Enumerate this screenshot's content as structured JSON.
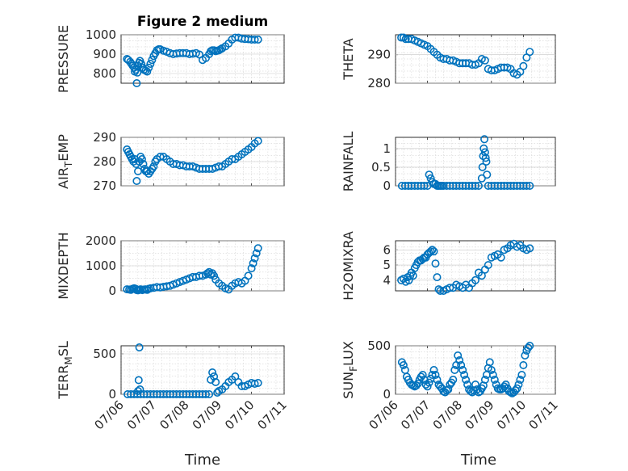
{
  "figure": {
    "title": "Figure 2 medium",
    "xlabel": "Time",
    "x_tick_labels": [
      "07/06",
      "07/07",
      "07/08",
      "07/09",
      "07/10",
      "07/11"
    ],
    "marker_color": "#0072BD"
  },
  "chart_data": [
    {
      "type": "scatter",
      "name": "pressure",
      "ylabel": "PRESSURE",
      "xlim": [
        0,
        5
      ],
      "ylim": [
        750,
        1000
      ],
      "yticks": [
        800,
        900,
        1000
      ],
      "grid": true,
      "x": [
        0.18,
        0.22,
        0.28,
        0.32,
        0.36,
        0.4,
        0.42,
        0.45,
        0.48,
        0.5,
        0.52,
        0.55,
        0.58,
        0.62,
        0.66,
        0.7,
        0.75,
        0.8,
        0.85,
        0.9,
        0.95,
        1.0,
        1.05,
        1.1,
        1.15,
        1.2,
        1.3,
        1.4,
        1.5,
        1.6,
        1.7,
        1.8,
        1.9,
        2.0,
        2.1,
        2.2,
        2.3,
        2.4,
        2.5,
        2.6,
        2.7,
        2.75,
        2.8,
        2.85,
        2.9,
        2.95,
        3.0,
        3.05,
        3.1,
        3.2,
        3.3,
        3.4,
        3.5,
        3.6,
        3.7,
        3.8,
        3.9,
        4.0,
        4.1,
        4.2
      ],
      "y": [
        875,
        870,
        860,
        850,
        840,
        830,
        810,
        820,
        750,
        805,
        840,
        855,
        865,
        850,
        830,
        820,
        815,
        810,
        830,
        850,
        870,
        890,
        905,
        920,
        925,
        925,
        918,
        912,
        905,
        900,
        903,
        905,
        905,
        905,
        900,
        902,
        905,
        898,
        870,
        880,
        900,
        915,
        920,
        920,
        915,
        918,
        920,
        925,
        930,
        940,
        955,
        975,
        985,
        985,
        980,
        978,
        977,
        975,
        975,
        975
      ]
    },
    {
      "type": "scatter",
      "name": "theta",
      "ylabel": "THETA",
      "xlim": [
        0,
        5
      ],
      "ylim": [
        280,
        297
      ],
      "yticks": [
        280,
        290
      ],
      "grid": true,
      "x": [
        0.18,
        0.25,
        0.32,
        0.4,
        0.5,
        0.6,
        0.7,
        0.8,
        0.9,
        1.0,
        1.1,
        1.2,
        1.3,
        1.4,
        1.5,
        1.6,
        1.7,
        1.8,
        1.9,
        2.0,
        2.1,
        2.2,
        2.3,
        2.4,
        2.5,
        2.6,
        2.7,
        2.8,
        2.9,
        3.0,
        3.1,
        3.2,
        3.3,
        3.4,
        3.5,
        3.6,
        3.7,
        3.8,
        3.9,
        4.0,
        4.1,
        4.2
      ],
      "y": [
        296,
        296,
        295.5,
        295.5,
        295.5,
        295,
        294.5,
        294,
        293.5,
        293,
        292,
        291,
        290,
        289,
        288.5,
        288.5,
        288,
        288,
        287.5,
        287,
        287,
        287,
        287,
        286.5,
        286.5,
        287,
        288.5,
        288,
        285,
        284.5,
        284.5,
        285,
        285.5,
        285.5,
        285.5,
        285,
        283.5,
        283,
        284,
        286,
        289,
        291
      ]
    },
    {
      "type": "scatter",
      "name": "air_temp",
      "ylabel": "AIR_TEMP",
      "xlim": [
        0,
        5
      ],
      "ylim": [
        270,
        290
      ],
      "yticks": [
        270,
        280,
        290
      ],
      "grid": true,
      "x": [
        0.18,
        0.22,
        0.26,
        0.3,
        0.34,
        0.38,
        0.42,
        0.46,
        0.48,
        0.52,
        0.56,
        0.6,
        0.64,
        0.68,
        0.72,
        0.76,
        0.8,
        0.85,
        0.9,
        0.95,
        1.0,
        1.05,
        1.1,
        1.2,
        1.3,
        1.4,
        1.5,
        1.6,
        1.7,
        1.8,
        1.9,
        2.0,
        2.1,
        2.2,
        2.3,
        2.4,
        2.5,
        2.6,
        2.7,
        2.8,
        2.9,
        3.0,
        3.1,
        3.2,
        3.3,
        3.4,
        3.5,
        3.6,
        3.7,
        3.8,
        3.9,
        4.0,
        4.1,
        4.2
      ],
      "y": [
        285,
        284,
        283,
        282,
        281,
        280,
        281,
        279,
        272,
        276,
        280,
        282,
        281,
        279,
        277,
        276,
        276,
        275,
        276,
        277,
        278,
        280,
        281,
        282,
        282,
        281,
        280,
        279,
        279,
        278.5,
        278.5,
        278,
        278,
        278,
        277.5,
        277,
        277,
        277,
        277,
        277,
        277.5,
        278,
        278,
        279,
        280,
        281,
        281,
        282,
        283,
        284,
        285,
        286,
        287.5,
        288.5
      ]
    },
    {
      "type": "scatter",
      "name": "rainfall",
      "ylabel": "RAINFALL",
      "xlim": [
        0,
        5
      ],
      "ylim": [
        0,
        1.3
      ],
      "yticks": [
        0,
        0.5,
        1
      ],
      "grid": true,
      "x": [
        0.2,
        0.3,
        0.4,
        0.5,
        0.6,
        0.7,
        0.8,
        0.9,
        1.0,
        1.05,
        1.1,
        1.15,
        1.2,
        1.25,
        1.3,
        1.35,
        1.4,
        1.45,
        1.5,
        1.6,
        1.7,
        1.8,
        1.9,
        2.0,
        2.1,
        2.2,
        2.3,
        2.4,
        2.5,
        2.6,
        2.7,
        2.72,
        2.74,
        2.76,
        2.78,
        2.8,
        2.82,
        2.84,
        2.86,
        2.9,
        3.0,
        3.1,
        3.2,
        3.3,
        3.4,
        3.5,
        3.6,
        3.7,
        3.8,
        3.9,
        4.0,
        4.1,
        4.2
      ],
      "y": [
        0,
        0,
        0,
        0,
        0,
        0,
        0,
        0,
        0,
        0.3,
        0.2,
        0.1,
        0.05,
        0.05,
        0,
        0,
        0,
        0,
        0,
        0,
        0,
        0,
        0,
        0,
        0,
        0,
        0,
        0,
        0,
        0,
        0.2,
        0.5,
        0.8,
        1.0,
        1.25,
        0.9,
        0.75,
        0.65,
        0.3,
        0,
        0,
        0,
        0,
        0,
        0,
        0,
        0,
        0,
        0,
        0,
        0,
        0,
        0
      ]
    },
    {
      "type": "scatter",
      "name": "mixdepth",
      "ylabel": "MIXDEPTH",
      "xlim": [
        0,
        5
      ],
      "ylim": [
        0,
        2000
      ],
      "yticks": [
        0,
        1000,
        2000
      ],
      "grid": true,
      "x": [
        0.18,
        0.25,
        0.3,
        0.35,
        0.4,
        0.45,
        0.48,
        0.52,
        0.56,
        0.6,
        0.65,
        0.7,
        0.75,
        0.8,
        0.85,
        0.9,
        1.0,
        1.1,
        1.2,
        1.3,
        1.4,
        1.5,
        1.6,
        1.7,
        1.8,
        1.9,
        2.0,
        2.1,
        2.2,
        2.3,
        2.4,
        2.5,
        2.6,
        2.65,
        2.7,
        2.75,
        2.8,
        2.85,
        2.9,
        3.0,
        3.1,
        3.2,
        3.3,
        3.4,
        3.5,
        3.6,
        3.7,
        3.8,
        3.9,
        4.0,
        4.05,
        4.1,
        4.15,
        4.2
      ],
      "y": [
        60,
        50,
        40,
        80,
        100,
        80,
        30,
        20,
        40,
        60,
        30,
        50,
        60,
        40,
        80,
        100,
        120,
        150,
        140,
        160,
        180,
        200,
        250,
        300,
        350,
        400,
        450,
        500,
        550,
        550,
        600,
        600,
        650,
        700,
        750,
        650,
        700,
        600,
        450,
        300,
        200,
        100,
        50,
        200,
        300,
        350,
        300,
        400,
        600,
        900,
        1100,
        1300,
        1500,
        1700
      ]
    },
    {
      "type": "scatter",
      "name": "h2omixra",
      "ylabel": "H2OMIXRA",
      "xlim": [
        0,
        5
      ],
      "ylim": [
        3.3,
        6.6
      ],
      "yticks": [
        4,
        5,
        6
      ],
      "grid": true,
      "x": [
        0.18,
        0.25,
        0.32,
        0.38,
        0.42,
        0.46,
        0.5,
        0.55,
        0.6,
        0.65,
        0.7,
        0.75,
        0.8,
        0.85,
        0.9,
        0.95,
        1.0,
        1.05,
        1.1,
        1.15,
        1.2,
        1.25,
        1.3,
        1.35,
        1.4,
        1.5,
        1.6,
        1.7,
        1.8,
        1.9,
        2.0,
        2.1,
        2.2,
        2.3,
        2.4,
        2.5,
        2.6,
        2.7,
        2.8,
        2.9,
        3.0,
        3.1,
        3.2,
        3.3,
        3.4,
        3.5,
        3.6,
        3.7,
        3.8,
        3.9,
        4.0,
        4.1,
        4.2
      ],
      "y": [
        4.0,
        4.1,
        3.9,
        4.2,
        4.0,
        4.3,
        4.5,
        4.3,
        4.8,
        5.0,
        5.2,
        5.3,
        5.3,
        5.4,
        5.5,
        5.5,
        5.7,
        5.8,
        5.9,
        6.0,
        5.9,
        5.1,
        4.2,
        3.4,
        3.3,
        3.3,
        3.4,
        3.5,
        3.5,
        3.7,
        3.6,
        3.5,
        3.7,
        3.5,
        3.8,
        4.0,
        4.5,
        4.3,
        4.7,
        5.0,
        5.5,
        5.6,
        5.7,
        5.5,
        6.0,
        6.1,
        6.3,
        6.4,
        6.2,
        6.3,
        6.1,
        6.0,
        6.1
      ]
    },
    {
      "type": "scatter",
      "name": "terr_msl",
      "ylabel": "TERR_MSL",
      "xlim": [
        0,
        5
      ],
      "ylim": [
        0,
        600
      ],
      "yticks": [
        0,
        500
      ],
      "grid": true,
      "x": [
        0.2,
        0.3,
        0.4,
        0.5,
        0.52,
        0.54,
        0.56,
        0.58,
        0.6,
        0.7,
        0.8,
        0.9,
        1.0,
        1.1,
        1.2,
        1.3,
        1.4,
        1.5,
        1.6,
        1.7,
        1.8,
        1.9,
        2.0,
        2.1,
        2.2,
        2.3,
        2.4,
        2.5,
        2.6,
        2.7,
        2.75,
        2.8,
        2.85,
        2.9,
        2.95,
        3.0,
        3.1,
        3.2,
        3.3,
        3.4,
        3.5,
        3.6,
        3.7,
        3.8,
        3.9,
        4.0,
        4.1,
        4.2
      ],
      "y": [
        0,
        0,
        0,
        0,
        40,
        175,
        580,
        60,
        0,
        0,
        0,
        0,
        0,
        0,
        0,
        0,
        0,
        0,
        0,
        0,
        0,
        0,
        0,
        0,
        0,
        0,
        0,
        0,
        0,
        0,
        180,
        270,
        220,
        150,
        20,
        40,
        60,
        100,
        150,
        180,
        220,
        150,
        100,
        100,
        120,
        140,
        130,
        140
      ]
    },
    {
      "type": "scatter",
      "name": "sun_flux",
      "ylabel": "SUN_FLUX",
      "xlim": [
        0,
        5
      ],
      "ylim": [
        0,
        500
      ],
      "yticks": [
        0,
        500
      ],
      "grid": true,
      "x": [
        0.2,
        0.25,
        0.3,
        0.35,
        0.4,
        0.45,
        0.5,
        0.55,
        0.6,
        0.65,
        0.7,
        0.75,
        0.8,
        0.85,
        0.9,
        0.95,
        1.0,
        1.05,
        1.1,
        1.15,
        1.2,
        1.25,
        1.3,
        1.35,
        1.4,
        1.45,
        1.5,
        1.55,
        1.6,
        1.65,
        1.7,
        1.75,
        1.8,
        1.85,
        1.9,
        1.95,
        2.0,
        2.05,
        2.1,
        2.15,
        2.2,
        2.25,
        2.3,
        2.35,
        2.4,
        2.45,
        2.5,
        2.55,
        2.6,
        2.65,
        2.7,
        2.75,
        2.8,
        2.85,
        2.9,
        2.95,
        3.0,
        3.05,
        3.1,
        3.15,
        3.2,
        3.25,
        3.3,
        3.35,
        3.4,
        3.45,
        3.5,
        3.55,
        3.6,
        3.65,
        3.7,
        3.75,
        3.8,
        3.85,
        3.9,
        3.95,
        4.0,
        4.05,
        4.1,
        4.15,
        4.2
      ],
      "y": [
        330,
        300,
        250,
        180,
        150,
        120,
        100,
        90,
        80,
        90,
        110,
        150,
        180,
        200,
        150,
        100,
        80,
        120,
        160,
        200,
        250,
        200,
        150,
        100,
        80,
        60,
        30,
        20,
        40,
        50,
        100,
        120,
        150,
        250,
        300,
        400,
        350,
        300,
        250,
        200,
        150,
        100,
        50,
        30,
        20,
        40,
        100,
        50,
        20,
        30,
        60,
        90,
        150,
        200,
        270,
        330,
        250,
        200,
        150,
        100,
        60,
        50,
        50,
        60,
        80,
        100,
        60,
        30,
        20,
        10,
        20,
        40,
        60,
        100,
        150,
        200,
        300,
        400,
        450,
        480,
        500
      ]
    }
  ]
}
